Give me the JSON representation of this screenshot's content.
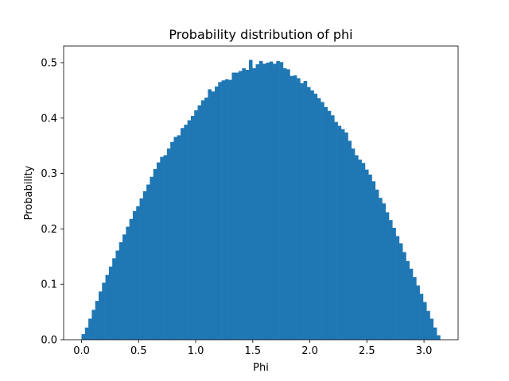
{
  "chart_data": {
    "type": "bar",
    "title": "Probability distribution of phi",
    "xlabel": "Phi",
    "ylabel": "Probability",
    "xlim": [
      -0.157,
      3.299
    ],
    "ylim": [
      0,
      0.53
    ],
    "xticks": [
      "0.0",
      "0.5",
      "1.0",
      "1.5",
      "2.0",
      "2.5",
      "3.0"
    ],
    "yticks": [
      "0.0",
      "0.1",
      "0.2",
      "0.3",
      "0.4",
      "0.5"
    ],
    "bin_range": [
      0,
      3.1416
    ],
    "grid": false,
    "legend": false,
    "color": "#1f77b4",
    "values": [
      0.01,
      0.022,
      0.038,
      0.054,
      0.07,
      0.087,
      0.103,
      0.117,
      0.132,
      0.147,
      0.161,
      0.176,
      0.19,
      0.204,
      0.218,
      0.232,
      0.241,
      0.255,
      0.268,
      0.28,
      0.294,
      0.308,
      0.32,
      0.33,
      0.333,
      0.345,
      0.357,
      0.366,
      0.369,
      0.382,
      0.388,
      0.396,
      0.404,
      0.414,
      0.423,
      0.432,
      0.437,
      0.452,
      0.448,
      0.457,
      0.465,
      0.468,
      0.47,
      0.469,
      0.482,
      0.482,
      0.485,
      0.49,
      0.487,
      0.505,
      0.49,
      0.497,
      0.503,
      0.498,
      0.5,
      0.502,
      0.498,
      0.503,
      0.501,
      0.49,
      0.488,
      0.476,
      0.477,
      0.472,
      0.463,
      0.467,
      0.456,
      0.45,
      0.444,
      0.436,
      0.429,
      0.42,
      0.413,
      0.405,
      0.393,
      0.386,
      0.38,
      0.374,
      0.359,
      0.345,
      0.333,
      0.325,
      0.319,
      0.307,
      0.298,
      0.286,
      0.271,
      0.256,
      0.246,
      0.23,
      0.216,
      0.202,
      0.187,
      0.174,
      0.158,
      0.142,
      0.128,
      0.113,
      0.098,
      0.083,
      0.068,
      0.052,
      0.038,
      0.022,
      0.008
    ]
  }
}
